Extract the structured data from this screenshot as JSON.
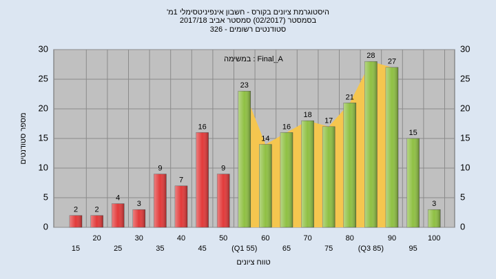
{
  "chart_data": {
    "type": "bar",
    "title": [
      "היסטוגרמת ציונים בקורס - חשבון אינפיניטסימלי 1מ'",
      "בסמסטר (02/2017) סמסטר אביב 2017/18",
      "סטודנטים רשומים - 326"
    ],
    "annotation": "במשימה : Final_A",
    "x_label": "טווח ציונים",
    "y_label": "מספר סטודנטים",
    "categories": [
      "15",
      "20",
      "25",
      "30",
      "35",
      "40",
      "45",
      "50",
      "(Q1 55)",
      "60",
      "65",
      "70",
      "75",
      "80",
      "(Q3 85)",
      "90",
      "95",
      "100"
    ],
    "values": [
      2,
      2,
      4,
      3,
      9,
      7,
      16,
      9,
      23,
      14,
      16,
      18,
      17,
      21,
      28,
      27,
      15,
      3
    ],
    "bar_colors": [
      "#e23a3a",
      "#e23a3a",
      "#e23a3a",
      "#e23a3a",
      "#e23a3a",
      "#e23a3a",
      "#e23a3a",
      "#e23a3a",
      "#8fc043",
      "#8fc043",
      "#8fc043",
      "#8fc043",
      "#8fc043",
      "#8fc043",
      "#8fc043",
      "#8fc043",
      "#8fc043",
      "#8fc043"
    ],
    "area_color": "#f5c64f",
    "ylim": [
      0,
      30
    ],
    "yticks": [
      0,
      5,
      10,
      15,
      20,
      25,
      30
    ],
    "grid": true
  }
}
